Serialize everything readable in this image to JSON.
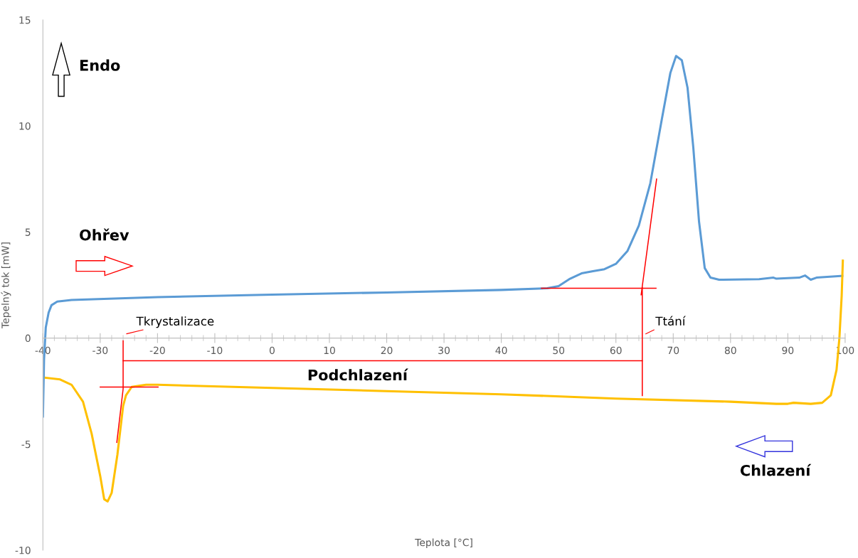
{
  "chart_data": {
    "type": "line",
    "xlabel": "Teplota [°C]",
    "ylabel": "Tepelný tok [mW]",
    "xlim": [
      -40,
      100
    ],
    "ylim": [
      -10,
      15
    ],
    "xticks": [
      -40,
      -30,
      -20,
      -10,
      0,
      10,
      20,
      30,
      40,
      50,
      60,
      70,
      80,
      90,
      100
    ],
    "yticks": [
      -10,
      -5,
      0,
      5,
      10,
      15
    ],
    "grid": false,
    "marker": "none",
    "line_style": "solid",
    "annotations": [
      "Endo",
      "Ohřev",
      "Chlazení",
      "Podchlazení",
      {
        "text": "Ttání",
        "x": 64.6,
        "y": 0
      },
      {
        "text": "Tkrystalizace",
        "x": -26,
        "y": 0
      }
    ],
    "series": [
      {
        "color": "#5b9bd5",
        "x": [
          -40,
          -39.8,
          -39.5,
          -39,
          -38.5,
          -37.5,
          -35,
          -20,
          0,
          20,
          40,
          48,
          50,
          52,
          54,
          56,
          58,
          60,
          62,
          64,
          66,
          68,
          69.5,
          70.5,
          71.5,
          72.5,
          73.5,
          74.5,
          75.5,
          76.5,
          78,
          85,
          87.5,
          88,
          92,
          93,
          94,
          95,
          99.5
        ],
        "values": [
          -3.7,
          -1.0,
          0.5,
          1.2,
          1.55,
          1.72,
          1.8,
          1.93,
          2.05,
          2.15,
          2.27,
          2.35,
          2.45,
          2.8,
          3.05,
          3.15,
          3.25,
          3.5,
          4.1,
          5.3,
          7.3,
          10.3,
          12.5,
          13.3,
          13.1,
          11.8,
          9,
          5.5,
          3.3,
          2.85,
          2.75,
          2.78,
          2.85,
          2.8,
          2.85,
          2.95,
          2.75,
          2.85,
          2.93
        ]
      },
      {
        "color": "#ffc000",
        "x": [
          -39.5,
          -37,
          -35,
          -33,
          -31.5,
          -30,
          -29.3,
          -28.7,
          -28,
          -27,
          -26,
          -25.5,
          -24.5,
          -22,
          -20,
          0,
          20,
          40,
          60,
          80,
          88,
          90,
          91,
          94,
          96,
          97.5,
          98.5,
          99,
          99.4,
          99.6
        ],
        "values": [
          -1.87,
          -1.95,
          -2.2,
          -3.0,
          -4.5,
          -6.5,
          -7.6,
          -7.7,
          -7.3,
          -5.5,
          -3.2,
          -2.7,
          -2.3,
          -2.2,
          -2.2,
          -2.35,
          -2.5,
          -2.65,
          -2.85,
          -3.0,
          -3.1,
          -3.1,
          -3.05,
          -3.1,
          -3.05,
          -2.7,
          -1.5,
          0,
          2,
          3.65
        ]
      },
      {
        "color": "#ff0000",
        "x": [
          47,
          67
        ],
        "values": [
          2.35,
          2.35
        ]
      },
      {
        "color": "#ff0000",
        "x": [
          64.4,
          67.1
        ],
        "values": [
          2.04,
          7.5
        ]
      },
      {
        "color": "#ff0000",
        "x": [
          64.6,
          64.6
        ],
        "values": [
          2.38,
          -2.71
        ]
      },
      {
        "color": "#ff0000",
        "x": [
          -26,
          64.6
        ],
        "values": [
          -1.07,
          -1.07
        ]
      },
      {
        "color": "#ff0000",
        "x": [
          -26,
          -26,
          -27.1
        ],
        "values": [
          -0.13,
          -2.4,
          -4.92
        ]
      },
      {
        "color": "#ff0000",
        "x": [
          -30,
          -19.9
        ],
        "values": [
          -2.31,
          -2.31
        ]
      }
    ]
  }
}
